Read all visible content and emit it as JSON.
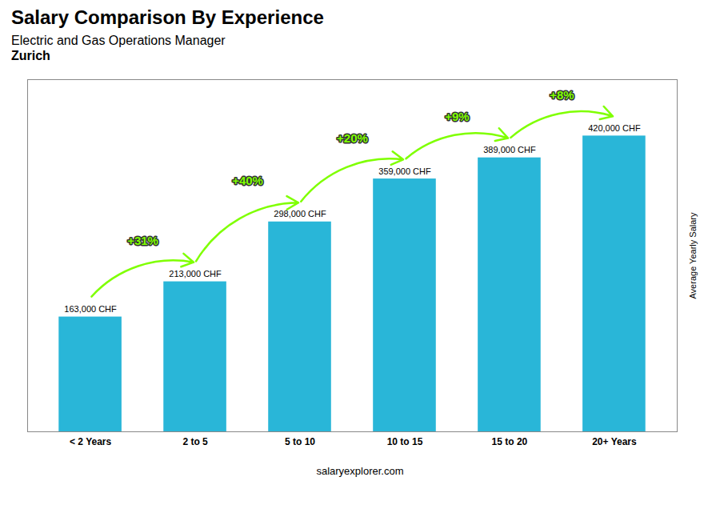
{
  "chart_data": {
    "type": "bar",
    "title": "Salary Comparison By Experience",
    "subtitle": [
      "Electric and Gas Operations Manager",
      "Zurich"
    ],
    "caption": "salaryexplorer.com",
    "ylabel": "Average Yearly Salary",
    "categories": [
      "< 2 Years",
      "2 to 5",
      "5 to 10",
      "10 to 15",
      "15 to 20",
      "20+ Years"
    ],
    "values": [
      163000,
      213000,
      298000,
      359000,
      389000,
      420000
    ],
    "value_labels": [
      "163,000 CHF",
      "213,000 CHF",
      "298,000 CHF",
      "359,000 CHF",
      "389,000 CHF",
      "420,000 CHF"
    ],
    "data_labels": true,
    "color": "#29B6D8",
    "ylim": [
      0,
      500000
    ],
    "grid": false,
    "tick_labels": "x",
    "annotations": {
      "color": "#7FFF00",
      "labels": [
        "+31%",
        "+40%",
        "+20%",
        "+9%",
        "+8%"
      ]
    }
  }
}
